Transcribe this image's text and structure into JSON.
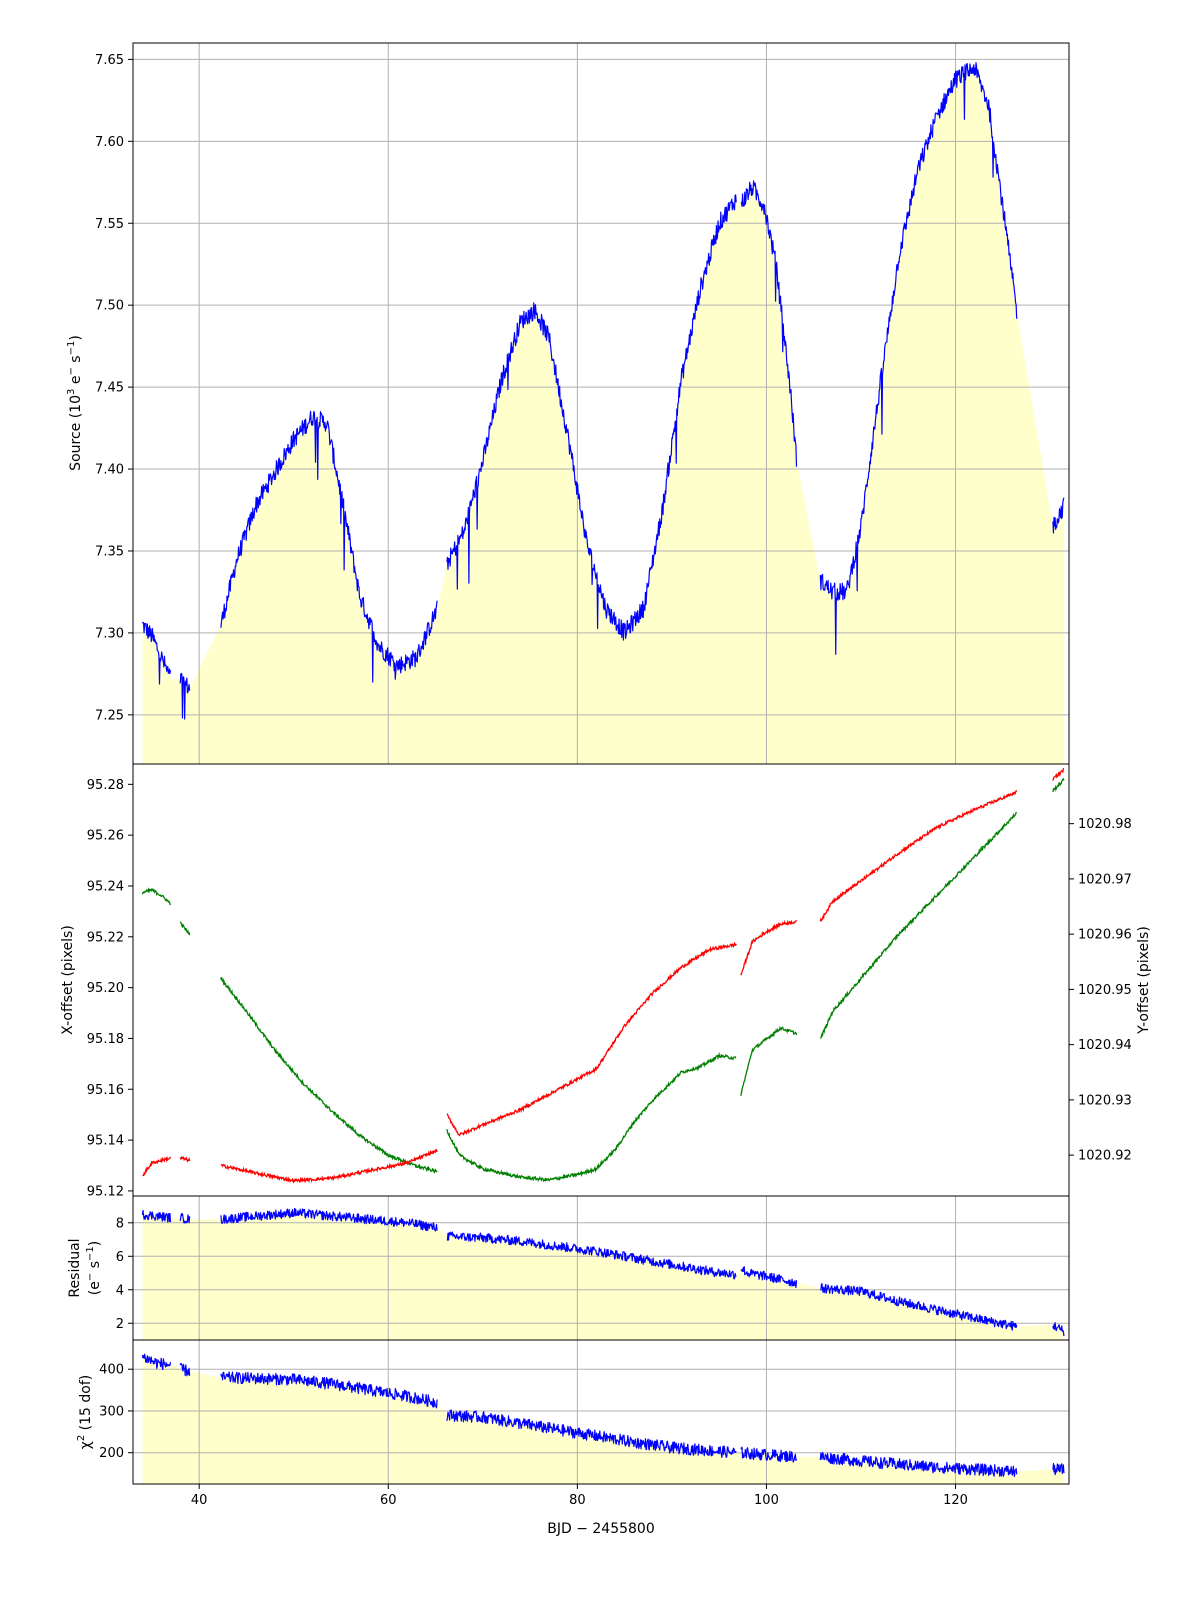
{
  "colors": {
    "flux": "#0000ff",
    "fill": "#ffffcc",
    "x_offset": "#ff0000",
    "y_offset": "#008000",
    "grid": "#b0b0b0"
  },
  "chart_data": [
    {
      "type": "line",
      "id": "source",
      "ylabel_main": "Source (10",
      "ylabel_sup_exp": "3",
      "ylabel_mid": " e",
      "ylabel_sup_minus": "−",
      "ylabel_tail": " s",
      "ylabel_sup_inv": "−1",
      "ylabel_close": ")",
      "xlim": [
        33,
        132
      ],
      "ylim": [
        7.22,
        7.66
      ],
      "yticks": [
        7.25,
        7.3,
        7.35,
        7.4,
        7.45,
        7.5,
        7.55,
        7.6,
        7.65
      ],
      "ytick_labels": [
        "7.25",
        "7.30",
        "7.35",
        "7.40",
        "7.45",
        "7.50",
        "7.55",
        "7.60",
        "7.65"
      ],
      "grid": true,
      "fill_under": true,
      "segments": [
        {
          "x": [
            34.0,
            35.0,
            36.0,
            37.0
          ],
          "y": [
            7.305,
            7.298,
            7.285,
            7.272
          ]
        },
        {
          "x": [
            38.0,
            39.0
          ],
          "y": [
            7.272,
            7.266
          ]
        },
        {
          "x": [
            42.3,
            44,
            46,
            48,
            50,
            52,
            53.5,
            55,
            57,
            59,
            61,
            63,
            65.2
          ],
          "y": [
            7.305,
            7.345,
            7.378,
            7.398,
            7.418,
            7.432,
            7.428,
            7.385,
            7.322,
            7.292,
            7.28,
            7.285,
            7.315
          ]
        },
        {
          "x": [
            66.2,
            68,
            70,
            72,
            74,
            75.5,
            77,
            79,
            81,
            83,
            85,
            87,
            89,
            91,
            93,
            95,
            96.8
          ],
          "y": [
            7.342,
            7.362,
            7.405,
            7.455,
            7.49,
            7.497,
            7.48,
            7.42,
            7.355,
            7.315,
            7.3,
            7.315,
            7.375,
            7.455,
            7.51,
            7.55,
            7.565
          ]
        },
        {
          "x": [
            97.3,
            98.5,
            99.8,
            101,
            102.5,
            103.2
          ],
          "y": [
            7.562,
            7.572,
            7.56,
            7.525,
            7.45,
            7.405
          ]
        },
        {
          "x": [
            105.7,
            107,
            108.5,
            110,
            112,
            114,
            116,
            118,
            120,
            122,
            123.5,
            125,
            126.5
          ],
          "y": [
            7.332,
            7.325,
            7.325,
            7.365,
            7.45,
            7.53,
            7.582,
            7.615,
            7.638,
            7.645,
            7.622,
            7.56,
            7.495
          ]
        },
        {
          "x": [
            130.3,
            131.5
          ],
          "y": [
            7.365,
            7.378
          ]
        }
      ]
    },
    {
      "type": "line",
      "id": "offsets",
      "ylabel_left": "X-offset (pixels)",
      "ylabel_right": "Y-offset (pixels)",
      "xlim": [
        33,
        132
      ],
      "ylim_left": [
        95.118,
        95.288
      ],
      "ylim_right": [
        1020.9126,
        1020.9908
      ],
      "yticks_left": [
        95.12,
        95.14,
        95.16,
        95.18,
        95.2,
        95.22,
        95.24,
        95.26,
        95.28
      ],
      "ytick_labels_left": [
        "95.12",
        "95.14",
        "95.16",
        "95.18",
        "95.20",
        "95.22",
        "95.24",
        "95.26",
        "95.28"
      ],
      "yticks_right": [
        1020.92,
        1020.93,
        1020.94,
        1020.95,
        1020.96,
        1020.97,
        1020.98
      ],
      "ytick_labels_right": [
        "1020.92",
        "1020.93",
        "1020.94",
        "1020.95",
        "1020.96",
        "1020.97",
        "1020.98"
      ],
      "grid": false,
      "series": [
        {
          "axis": "left",
          "segments": [
            {
              "x": [
                34.0,
                35.0,
                36.0,
                37.0
              ],
              "y": [
                95.126,
                95.131,
                95.132,
                95.133
              ]
            },
            {
              "x": [
                38.0,
                39.0
              ],
              "y": [
                95.133,
                95.132
              ]
            },
            {
              "x": [
                42.3,
                46,
                50,
                54,
                58,
                62,
                65.2
              ],
              "y": [
                95.13,
                95.127,
                95.124,
                95.125,
                95.128,
                95.131,
                95.136
              ]
            },
            {
              "x": [
                66.2,
                67.5,
                70,
                74,
                78,
                82,
                85,
                88,
                91,
                94,
                96.8
              ],
              "y": [
                95.15,
                95.142,
                95.146,
                95.152,
                95.16,
                95.168,
                95.185,
                95.198,
                95.208,
                95.215,
                95.217
              ]
            },
            {
              "x": [
                97.3,
                98.5,
                100,
                101.5,
                103.2
              ],
              "y": [
                95.205,
                95.218,
                95.222,
                95.225,
                95.226
              ]
            },
            {
              "x": [
                105.7,
                107,
                110,
                114,
                118,
                122,
                126.5
              ],
              "y": [
                95.226,
                95.234,
                95.242,
                95.253,
                95.263,
                95.27,
                95.277
              ]
            },
            {
              "x": [
                130.3,
                131.5
              ],
              "y": [
                95.282,
                95.286
              ]
            }
          ]
        },
        {
          "axis": "right",
          "segments": [
            {
              "x": [
                34.0,
                35.0,
                36.0,
                37.0
              ],
              "y": [
                1020.9675,
                1020.968,
                1020.967,
                1020.9655
              ]
            },
            {
              "x": [
                38.0,
                39.0
              ],
              "y": [
                1020.962,
                1020.96
              ]
            },
            {
              "x": [
                42.3,
                45,
                48,
                51,
                54,
                57,
                60,
                63,
                65.2
              ],
              "y": [
                1020.952,
                1020.946,
                1020.939,
                1020.933,
                1020.928,
                1020.9235,
                1020.92,
                1020.918,
                1020.917
              ]
            },
            {
              "x": [
                66.2,
                67.5,
                70,
                74,
                77,
                80,
                82,
                84,
                86,
                88,
                91,
                93,
                95,
                96.8
              ],
              "y": [
                1020.9245,
                1020.92,
                1020.9175,
                1020.916,
                1020.9155,
                1020.9165,
                1020.9175,
                1020.921,
                1020.926,
                1020.93,
                1020.935,
                1020.936,
                1020.938,
                1020.9375
              ]
            },
            {
              "x": [
                97.3,
                98.5,
                100,
                101.5,
                103.2
              ],
              "y": [
                1020.931,
                1020.939,
                1020.941,
                1020.943,
                1020.942
              ]
            },
            {
              "x": [
                105.7,
                107,
                110,
                114,
                118,
                122,
                126.5
              ],
              "y": [
                1020.941,
                1020.946,
                1020.952,
                1020.96,
                1020.967,
                1020.974,
                1020.982
              ]
            },
            {
              "x": [
                130.3,
                131.5
              ],
              "y": [
                1020.986,
                1020.988
              ]
            }
          ]
        }
      ]
    },
    {
      "type": "line",
      "id": "residual",
      "ylabel_line1": "Residual",
      "ylabel_line2_a": "(e",
      "ylabel_line2_sup": "−",
      "ylabel_line2_b": " s",
      "ylabel_line2_sup2": "−1",
      "ylabel_line2_c": ")",
      "xlim": [
        33,
        132
      ],
      "ylim": [
        1.0,
        9.6
      ],
      "yticks": [
        2,
        4,
        6,
        8
      ],
      "ytick_labels": [
        "2",
        "4",
        "6",
        "8"
      ],
      "grid": true,
      "fill_under": true,
      "segments": [
        {
          "x": [
            34.0,
            35.5,
            37.0
          ],
          "y": [
            8.5,
            8.4,
            8.3
          ]
        },
        {
          "x": [
            38.0,
            39.0
          ],
          "y": [
            8.3,
            8.2
          ]
        },
        {
          "x": [
            42.3,
            46,
            50,
            54,
            58,
            62,
            65.2
          ],
          "y": [
            8.2,
            8.4,
            8.6,
            8.4,
            8.2,
            8.0,
            7.7
          ]
        },
        {
          "x": [
            66.2,
            70,
            74,
            78,
            82,
            86,
            90,
            94,
            96.8
          ],
          "y": [
            7.2,
            7.1,
            6.9,
            6.6,
            6.3,
            5.9,
            5.5,
            5.1,
            4.9
          ]
        },
        {
          "x": [
            97.3,
            98,
            100,
            103.2
          ],
          "y": [
            5.3,
            5.0,
            4.8,
            4.4
          ]
        },
        {
          "x": [
            105.7,
            110,
            114,
            118,
            122,
            126.5
          ],
          "y": [
            4.1,
            3.9,
            3.3,
            2.8,
            2.3,
            1.8
          ]
        },
        {
          "x": [
            130.3,
            131.5
          ],
          "y": [
            1.9,
            1.5
          ]
        }
      ]
    },
    {
      "type": "line",
      "id": "chi2",
      "ylabel_chi": "χ",
      "ylabel_sup": "2",
      "ylabel_tail": " (15 dof)",
      "xlabel": "BJD − 2455800",
      "xlim": [
        33,
        132
      ],
      "ylim": [
        125,
        470
      ],
      "yticks": [
        200,
        300,
        400
      ],
      "ytick_labels": [
        "200",
        "300",
        "400"
      ],
      "xticks": [
        40,
        60,
        80,
        100,
        120
      ],
      "xtick_labels": [
        "40",
        "60",
        "80",
        "100",
        "120"
      ],
      "grid": true,
      "fill_under": true,
      "segments": [
        {
          "x": [
            34.0,
            35.5,
            37.0
          ],
          "y": [
            430,
            415,
            410
          ]
        },
        {
          "x": [
            38.0,
            39.0
          ],
          "y": [
            400,
            395
          ]
        },
        {
          "x": [
            42.3,
            46,
            50,
            54,
            58,
            62,
            65.2
          ],
          "y": [
            380,
            378,
            375,
            365,
            350,
            335,
            320
          ]
        },
        {
          "x": [
            66.2,
            70,
            74,
            78,
            82,
            86,
            90,
            94,
            96.8
          ],
          "y": [
            290,
            285,
            270,
            255,
            240,
            225,
            212,
            205,
            200
          ]
        },
        {
          "x": [
            97.3,
            100,
            103.2
          ],
          "y": [
            200,
            195,
            190
          ]
        },
        {
          "x": [
            105.7,
            110,
            114,
            118,
            122,
            126.5
          ],
          "y": [
            190,
            180,
            172,
            165,
            160,
            155
          ]
        },
        {
          "x": [
            130.3,
            131.5
          ],
          "y": [
            160,
            160
          ]
        }
      ]
    }
  ]
}
